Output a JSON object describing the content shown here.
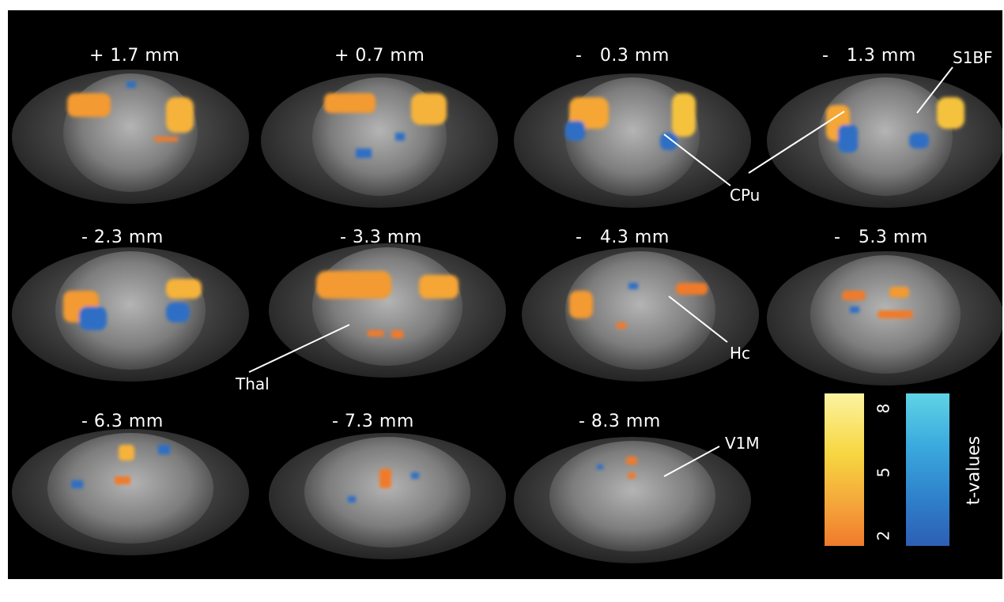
{
  "slices": [
    {
      "label": "+ 1.7 mm"
    },
    {
      "label": "+ 0.7 mm"
    },
    {
      "label": "-   0.3 mm"
    },
    {
      "label": "-   1.3 mm"
    },
    {
      "label": "- 2.3 mm"
    },
    {
      "label": "- 3.3 mm"
    },
    {
      "label": "-   4.3 mm"
    },
    {
      "label": "-   5.3 mm"
    },
    {
      "label": "- 6.3 mm"
    },
    {
      "label": "- 7.3 mm"
    },
    {
      "label": "- 8.3 mm"
    }
  ],
  "annotations": {
    "s1bf": "S1BF",
    "cpu": "CPu",
    "hc": "Hc",
    "thal": "Thal",
    "v1m": "V1M"
  },
  "colorbar": {
    "title": "t-values",
    "ticks": [
      "8",
      "5",
      "2"
    ],
    "positive_colors": [
      "#fbf3a0",
      "#f7d640",
      "#f4a23a",
      "#f07a2c"
    ],
    "negative_colors": [
      "#5fd3e6",
      "#3aa9dd",
      "#2f7fca",
      "#2d5fb5"
    ]
  },
  "colors": {
    "background": "#000000",
    "activation_positive": "#f39a30",
    "activation_negative": "#2e6ec4"
  }
}
